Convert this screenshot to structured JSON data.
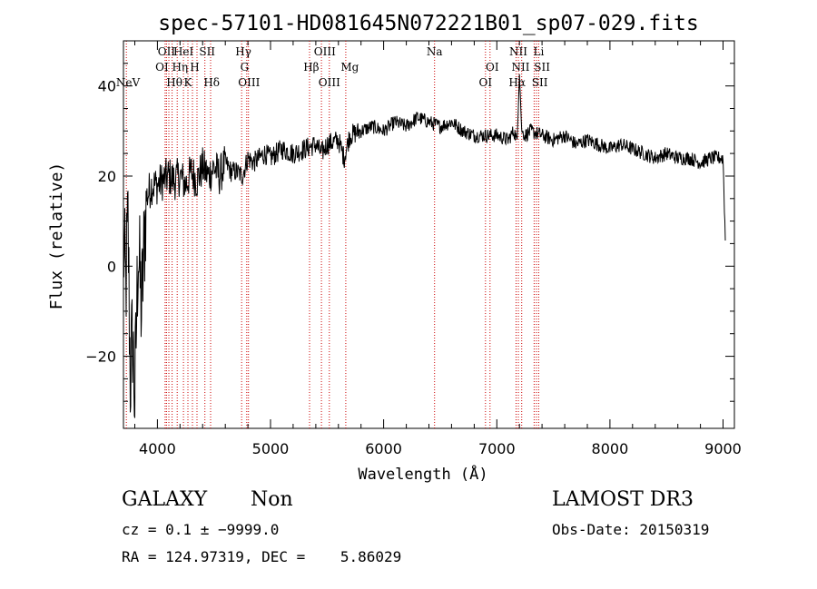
{
  "chart_data": {
    "type": "line",
    "title": "spec-57101-HD081645N072221B01_sp07-029.fits",
    "xlabel": "Wavelength (Å)",
    "ylabel": "Flux (relative)",
    "xlim": [
      3700,
      9100
    ],
    "ylim": [
      -36,
      50
    ],
    "xticks": [
      4000,
      5000,
      6000,
      7000,
      8000,
      9000
    ],
    "xtick_labels": [
      "4000",
      "5000",
      "6000",
      "7000",
      "8000",
      "9000"
    ],
    "yticks": [
      -20,
      0,
      20,
      40
    ],
    "ytick_labels": [
      "−20",
      "0",
      "20",
      "40"
    ],
    "grid": false,
    "series": [
      {
        "name": "spectrum",
        "x": [
          3700,
          3720,
          3740,
          3760,
          3780,
          3800,
          3830,
          3860,
          3900,
          3950,
          4000,
          4050,
          4100,
          4150,
          4200,
          4250,
          4300,
          4350,
          4400,
          4450,
          4500,
          4550,
          4600,
          4650,
          4700,
          4750,
          4800,
          4850,
          4900,
          4950,
          5000,
          5100,
          5200,
          5300,
          5400,
          5450,
          5500,
          5600,
          5650,
          5700,
          5800,
          5900,
          6000,
          6100,
          6200,
          6300,
          6400,
          6500,
          6600,
          6700,
          6800,
          6900,
          7000,
          7100,
          7150,
          7180,
          7200,
          7220,
          7250,
          7300,
          7400,
          7500,
          7600,
          7700,
          7800,
          7900,
          8000,
          8100,
          8200,
          8300,
          8400,
          8500,
          8600,
          8700,
          8800,
          8900,
          9000,
          9020
        ],
        "y": [
          5,
          -5,
          10,
          -25,
          -15,
          -30,
          5,
          -10,
          15,
          18,
          18,
          19,
          20,
          19,
          20,
          18,
          21,
          19,
          22,
          20,
          22,
          20,
          23,
          21,
          21,
          20,
          24,
          23,
          24,
          25,
          24,
          26,
          25,
          26,
          27,
          25,
          27,
          28,
          24,
          29,
          30,
          31,
          30,
          32,
          31,
          33,
          32,
          31,
          32,
          30,
          29,
          29,
          29,
          28,
          30,
          28,
          43,
          30,
          29,
          30,
          29,
          28,
          29,
          27,
          28,
          27,
          26,
          27,
          26,
          25,
          24,
          25,
          24,
          24,
          23,
          24,
          24,
          6
        ]
      }
    ],
    "lines": [
      {
        "name": "NeV",
        "wavelength": 3726
      },
      {
        "name": "OII",
        "wavelength": 4068
      },
      {
        "name": "OI",
        "wavelength": 4080
      },
      {
        "name": "Hε",
        "wavelength": 4101
      },
      {
        "name": "Hθ",
        "wavelength": 4130
      },
      {
        "name": "Hη",
        "wavelength": 4175
      },
      {
        "name": "HeI",
        "wavelength": 4230
      },
      {
        "name": "K",
        "wavelength": 4270
      },
      {
        "name": "H",
        "wavelength": 4310
      },
      {
        "name": "SII",
        "wavelength": 4350
      },
      {
        "name": "Hδ",
        "wavelength": 4420
      },
      {
        "name": "SII",
        "wavelength": 4470
      },
      {
        "name": "Hγ",
        "wavelength": 4745
      },
      {
        "name": "G",
        "wavelength": 4790
      },
      {
        "name": "OIII",
        "wavelength": 4805
      },
      {
        "name": "Hβ",
        "wavelength": 5345
      },
      {
        "name": "OIII",
        "wavelength": 5450
      },
      {
        "name": "OIII",
        "wavelength": 5520
      },
      {
        "name": "Mg",
        "wavelength": 5665
      },
      {
        "name": "Na",
        "wavelength": 6450
      },
      {
        "name": "OI",
        "wavelength": 6900
      },
      {
        "name": "OI",
        "wavelength": 6940
      },
      {
        "name": "NII",
        "wavelength": 7170
      },
      {
        "name": "Hα",
        "wavelength": 7190
      },
      {
        "name": "NII",
        "wavelength": 7220
      },
      {
        "name": "SII",
        "wavelength": 7330
      },
      {
        "name": "Li",
        "wavelength": 7350
      },
      {
        "name": "SII",
        "wavelength": 7370
      }
    ],
    "line_labels": [
      {
        "text": "NeV",
        "wavelength": 3740,
        "row": 3
      },
      {
        "text": "OII",
        "wavelength": 4080,
        "row": 1
      },
      {
        "text": "HeI",
        "wavelength": 4230,
        "row": 1
      },
      {
        "text": "SII",
        "wavelength": 4440,
        "row": 1
      },
      {
        "text": "Hγ",
        "wavelength": 4760,
        "row": 1
      },
      {
        "text": "OIII",
        "wavelength": 5480,
        "row": 1
      },
      {
        "text": "Na",
        "wavelength": 6450,
        "row": 1
      },
      {
        "text": "NII",
        "wavelength": 7190,
        "row": 1
      },
      {
        "text": "Li",
        "wavelength": 7370,
        "row": 1
      },
      {
        "text": "OI",
        "wavelength": 4040,
        "row": 2
      },
      {
        "text": "Hη",
        "wavelength": 4200,
        "row": 2
      },
      {
        "text": "H",
        "wavelength": 4330,
        "row": 2
      },
      {
        "text": "G",
        "wavelength": 4770,
        "row": 2
      },
      {
        "text": "Hβ",
        "wavelength": 5360,
        "row": 2
      },
      {
        "text": "Mg",
        "wavelength": 5700,
        "row": 2
      },
      {
        "text": "OI",
        "wavelength": 6960,
        "row": 2
      },
      {
        "text": "NII",
        "wavelength": 7210,
        "row": 2
      },
      {
        "text": "SII",
        "wavelength": 7400,
        "row": 2
      },
      {
        "text": "Hθ",
        "wavelength": 4150,
        "row": 3
      },
      {
        "text": "K",
        "wavelength": 4270,
        "row": 3
      },
      {
        "text": "Hδ",
        "wavelength": 4480,
        "row": 3
      },
      {
        "text": "OIII",
        "wavelength": 4810,
        "row": 3
      },
      {
        "text": "OIII",
        "wavelength": 5520,
        "row": 3
      },
      {
        "text": "OI",
        "wavelength": 6900,
        "row": 3
      },
      {
        "text": "Hα",
        "wavelength": 7180,
        "row": 3
      },
      {
        "text": "SII",
        "wavelength": 7380,
        "row": 3
      }
    ],
    "line_color": "#cc0000",
    "spectrum_color": "#000000"
  },
  "info": {
    "object_class": "GALAXY",
    "subclass": "Non",
    "survey": "LAMOST DR3",
    "redshift": "cz = 0.1 ± −9999.0",
    "obs_date": "Obs-Date: 20150319",
    "coords": "RA = 124.97319, DEC =    5.86029"
  }
}
